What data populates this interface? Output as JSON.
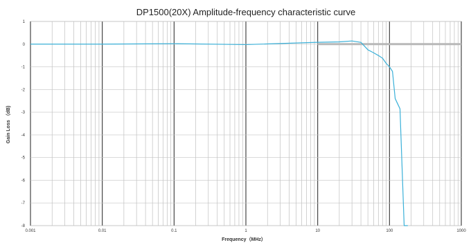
{
  "chart_data": {
    "type": "line",
    "title": "DP1500(20X) Amplitude-frequency characteristic curve",
    "xlabel": "Frequency（MHz）",
    "ylabel": "Gain Loss （dB)",
    "xscale": "log",
    "xlim": [
      0.001,
      1000
    ],
    "ylim": [
      -8,
      1
    ],
    "x_ticks": [
      "0.001",
      "0.01",
      "0.1",
      "1",
      "10",
      "100",
      "1000"
    ],
    "y_ticks": [
      "1",
      "0",
      "-1",
      "-2",
      "-3",
      "-4",
      "-5",
      "-6",
      "-7",
      "-8"
    ],
    "grid": true,
    "legend": "none",
    "series": [
      {
        "color": "#3ab0d8",
        "x": [
          0.001,
          0.01,
          0.1,
          1,
          5,
          10,
          20,
          30,
          40,
          50,
          60,
          70,
          80,
          90,
          100,
          110,
          120,
          140,
          160,
          180
        ],
        "y": [
          0.0,
          0.0,
          0.02,
          -0.02,
          0.05,
          0.08,
          0.1,
          0.14,
          0.08,
          -0.25,
          -0.38,
          -0.5,
          -0.62,
          -0.85,
          -1.0,
          -1.2,
          -2.4,
          -2.85,
          -8.0,
          -8.0
        ]
      },
      {
        "color": "#b8b8b8",
        "x": [
          10,
          20,
          50,
          100,
          200,
          400,
          1000
        ],
        "y": [
          0.0,
          0.0,
          0.0,
          0.0,
          0.0,
          0.0,
          0.0
        ]
      }
    ]
  }
}
